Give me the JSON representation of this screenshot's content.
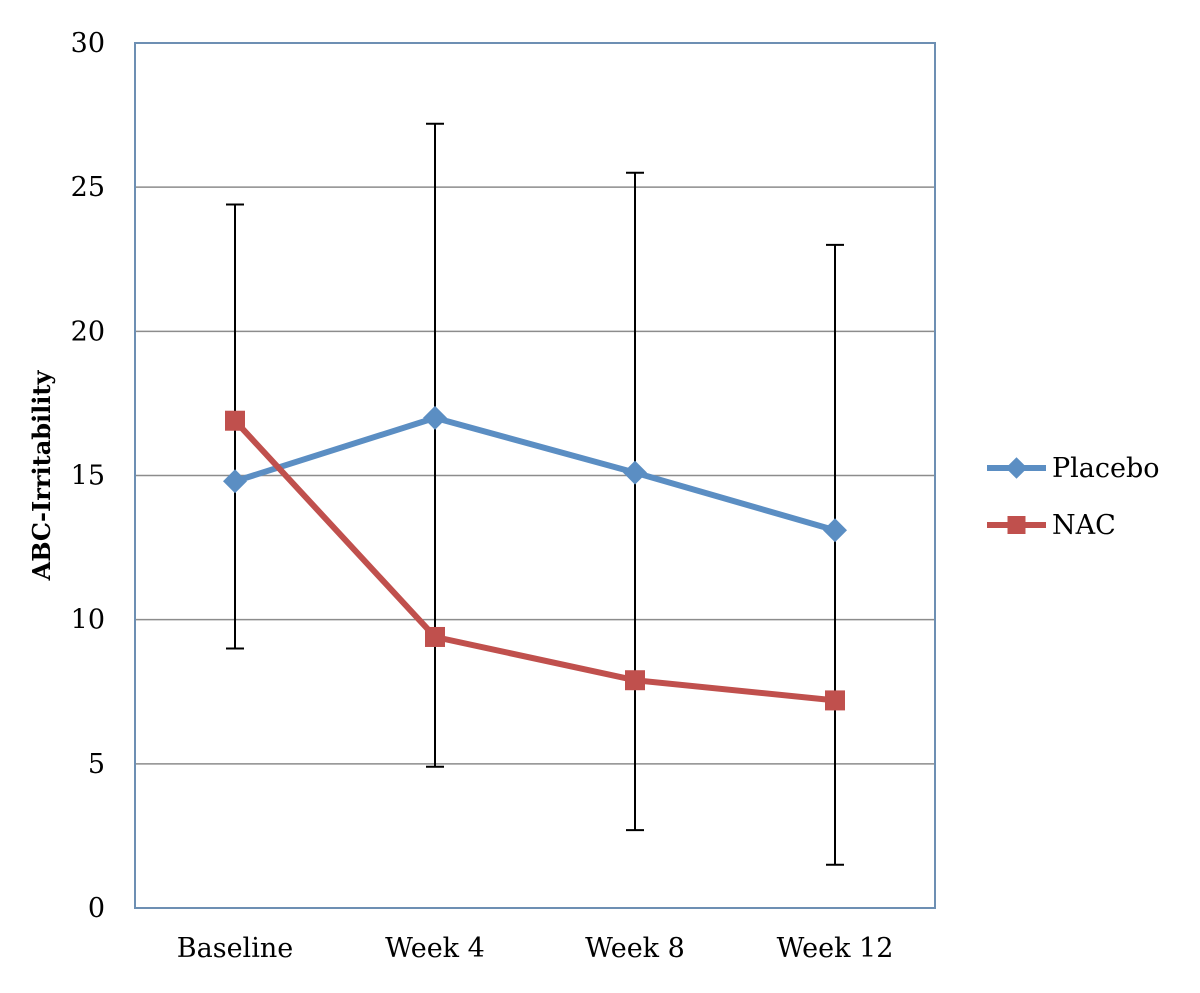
{
  "chart_data": {
    "type": "line",
    "title": "",
    "xlabel": "",
    "ylabel": "ABC-Irritability",
    "ylim": [
      0,
      30
    ],
    "yticks": [
      0,
      5,
      10,
      15,
      20,
      25,
      30
    ],
    "grid": true,
    "legend_position": "right",
    "categories": [
      "Baseline",
      "Week 4",
      "Week 8",
      "Week 12"
    ],
    "error_bars": {
      "description": "error bars (lower, upper) per category",
      "values": [
        [
          9.0,
          24.4
        ],
        [
          4.9,
          27.2
        ],
        [
          2.7,
          25.5
        ],
        [
          1.5,
          23.0
        ]
      ]
    },
    "series": [
      {
        "name": "Placebo",
        "marker": "diamond",
        "color": "#5b8ec3",
        "values": [
          14.8,
          17.0,
          15.1,
          13.1
        ]
      },
      {
        "name": "NAC",
        "marker": "square",
        "color": "#c0504d",
        "values": [
          16.9,
          9.4,
          7.9,
          7.2
        ]
      }
    ]
  }
}
